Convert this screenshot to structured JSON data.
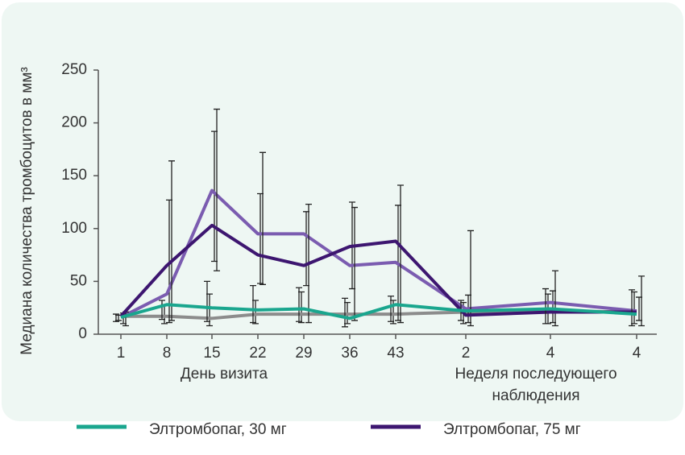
{
  "chart_data": {
    "type": "line",
    "y_label": "Медиана количества тромбоцитов в мм³",
    "categories": [
      "1",
      "8",
      "15",
      "22",
      "29",
      "36",
      "43",
      "2",
      "4",
      "4"
    ],
    "x_groups": [
      {
        "lines": [
          "День визита"
        ]
      },
      {
        "lines": [
          "Неделя последующего",
          "наблюдения"
        ]
      }
    ],
    "ylim": [
      0,
      250
    ],
    "yticks": [
      0,
      50,
      100,
      150,
      200,
      250
    ],
    "series": [
      {
        "name": "Элтромбопаг, 30 мг",
        "color": "#1aa68e",
        "values": [
          16,
          28,
          25,
          23,
          24,
          15,
          28,
          22,
          24,
          19
        ],
        "upper": [
          19,
          32,
          50,
          46,
          44,
          34,
          36,
          32,
          43,
          42
        ],
        "lower": [
          12,
          14,
          12,
          11,
          12,
          7,
          12,
          13,
          10,
          8
        ]
      },
      {
        "name": "Элтромбопаг, 75 мг",
        "color": "#3d1670",
        "values": [
          17,
          65,
          103,
          75,
          65,
          83,
          88,
          18,
          21,
          21
        ],
        "upper": [
          21,
          164,
          213,
          172,
          123,
          120,
          141,
          98,
          60,
          55
        ],
        "lower": [
          8,
          13,
          60,
          47,
          11,
          13,
          11,
          8,
          8,
          8
        ]
      },
      {
        "color": "#7b5cb0",
        "values": [
          16,
          38,
          136,
          95,
          95,
          65,
          68,
          24,
          30,
          22
        ],
        "upper": [
          20,
          127,
          192,
          133,
          116,
          125,
          122,
          37,
          41,
          35
        ],
        "lower": [
          10,
          11,
          69,
          48,
          46,
          43,
          13,
          11,
          11,
          13
        ]
      },
      {
        "color": "#8c8c8c",
        "values": [
          17,
          17,
          15,
          19,
          19,
          19,
          19,
          21,
          22,
          21
        ],
        "upper": [
          18,
          28,
          38,
          32,
          40,
          30,
          32,
          30,
          38,
          40
        ],
        "lower": [
          13,
          10,
          8,
          10,
          11,
          10,
          10,
          10,
          10,
          10
        ]
      }
    ]
  }
}
